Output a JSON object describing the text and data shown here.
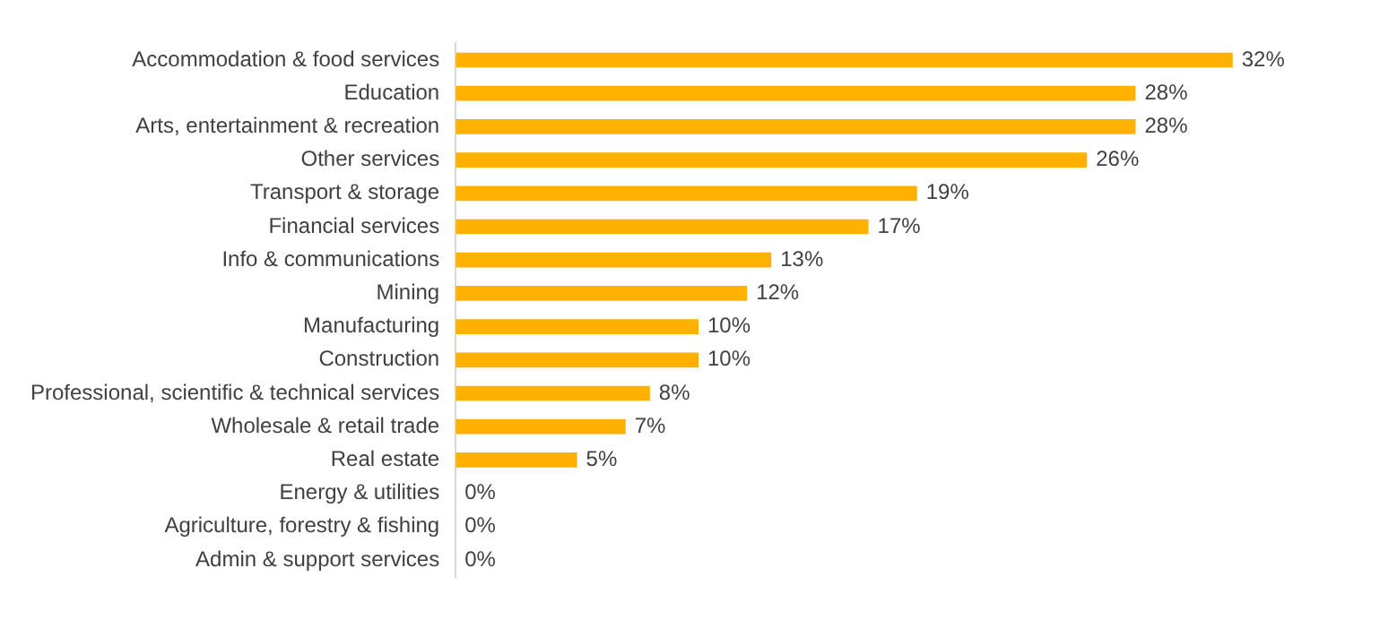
{
  "chart_data": {
    "type": "bar",
    "orientation": "horizontal",
    "categories": [
      "Accommodation & food services",
      "Education",
      "Arts, entertainment & recreation",
      "Other services",
      "Transport & storage",
      "Financial services",
      "Info & communications",
      "Mining",
      "Manufacturing",
      "Construction",
      "Professional, scientific & technical services",
      "Wholesale & retail trade",
      "Real estate",
      "Energy & utilities",
      "Agriculture, forestry & fishing",
      "Admin & support services"
    ],
    "values": [
      32,
      28,
      28,
      26,
      19,
      17,
      13,
      12,
      10,
      10,
      8,
      7,
      5,
      0,
      0,
      0
    ],
    "value_labels": [
      "32%",
      "28%",
      "28%",
      "26%",
      "19%",
      "17%",
      "13%",
      "12%",
      "10%",
      "10%",
      "8%",
      "7%",
      "5%",
      "0%",
      "0%",
      "0%"
    ],
    "color": "#ffb000",
    "tick_labels": "y",
    "legend": false
  }
}
